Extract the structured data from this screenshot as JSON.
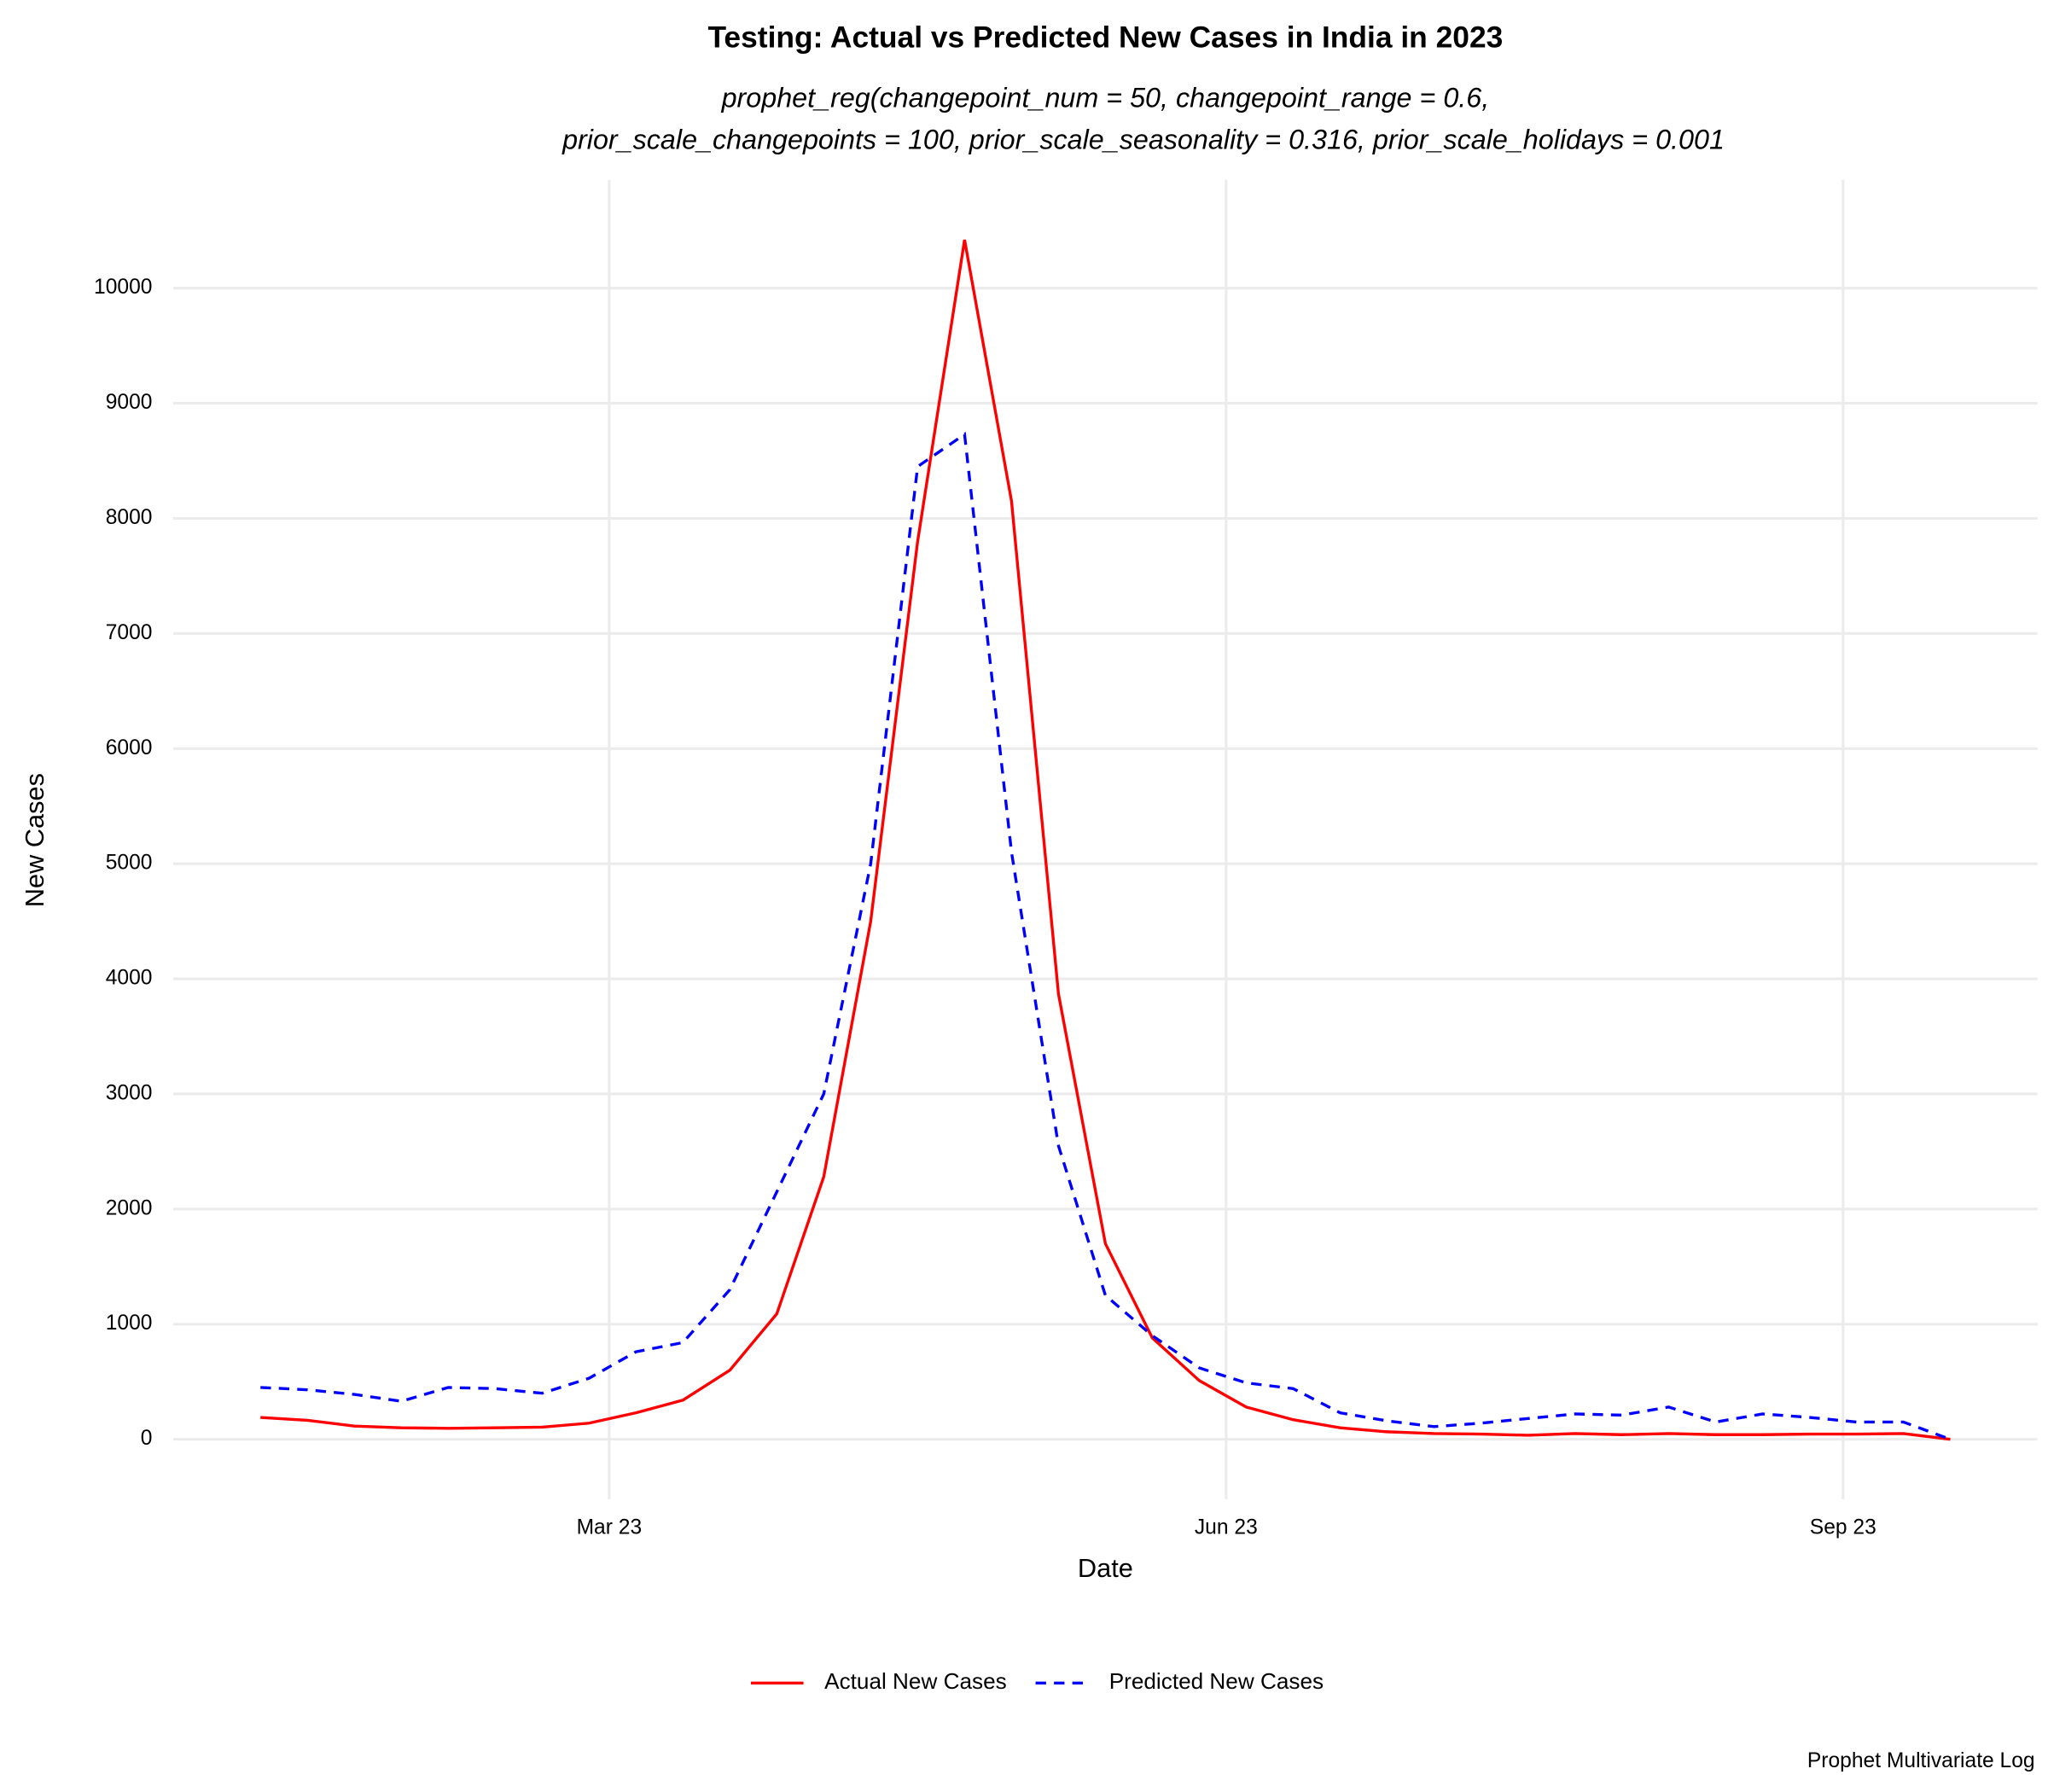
{
  "chart_data": {
    "type": "line",
    "title": "Testing: Actual vs Predicted New Cases in India in 2023",
    "subtitle": [
      "prophet_reg(changepoint_num = 50, changepoint_range = 0.6,",
      "prior_scale_changepoints = 100, prior_scale_seasonality = 0.316, prior_scale_holidays = 0.001"
    ],
    "x_label": "Date",
    "y_label": "New Cases",
    "caption": "Prophet Multivariate Log",
    "x": [
      "2023-01-08",
      "2023-01-15",
      "2023-01-22",
      "2023-01-29",
      "2023-02-05",
      "2023-02-12",
      "2023-02-19",
      "2023-02-26",
      "2023-03-05",
      "2023-03-12",
      "2023-03-19",
      "2023-03-26",
      "2023-04-02",
      "2023-04-09",
      "2023-04-16",
      "2023-04-23",
      "2023-04-30",
      "2023-05-07",
      "2023-05-14",
      "2023-05-21",
      "2023-05-28",
      "2023-06-04",
      "2023-06-11",
      "2023-06-18",
      "2023-06-25",
      "2023-07-02",
      "2023-07-09",
      "2023-07-16",
      "2023-07-23",
      "2023-07-30",
      "2023-08-06",
      "2023-08-13",
      "2023-08-20",
      "2023-08-27",
      "2023-09-03",
      "2023-09-10",
      "2023-09-17"
    ],
    "series": [
      {
        "name": "Actual New Cases",
        "color": "#ff0000",
        "dash": "solid",
        "values": [
          190,
          165,
          115,
          100,
          95,
          100,
          105,
          140,
          230,
          340,
          600,
          1090,
          2280,
          4500,
          7800,
          10420,
          8150,
          3870,
          1700,
          880,
          510,
          280,
          170,
          100,
          65,
          50,
          45,
          35,
          50,
          40,
          50,
          40,
          40,
          45,
          45,
          50,
          0
        ]
      },
      {
        "name": "Predicted New Cases",
        "color": "#0000ff",
        "dash": "dashed",
        "values": [
          450,
          430,
          390,
          330,
          450,
          440,
          400,
          530,
          760,
          840,
          1300,
          2150,
          3000,
          5000,
          8450,
          8730,
          5100,
          2550,
          1250,
          900,
          620,
          490,
          440,
          230,
          160,
          110,
          140,
          180,
          220,
          210,
          280,
          150,
          220,
          190,
          150,
          150,
          0
        ]
      }
    ],
    "xlim": [
      "2022-12-26",
      "2023-09-30"
    ],
    "xticks": [
      {
        "value": "2023-03-01",
        "label": "Mar 23"
      },
      {
        "value": "2023-06-01",
        "label": "Jun 23"
      },
      {
        "value": "2023-09-01",
        "label": "Sep 23"
      }
    ],
    "ylim": [
      -521,
      10941
    ],
    "yticks": [
      0,
      1000,
      2000,
      3000,
      4000,
      5000,
      6000,
      7000,
      8000,
      9000,
      10000
    ],
    "grid": true,
    "legend": "bottom"
  }
}
